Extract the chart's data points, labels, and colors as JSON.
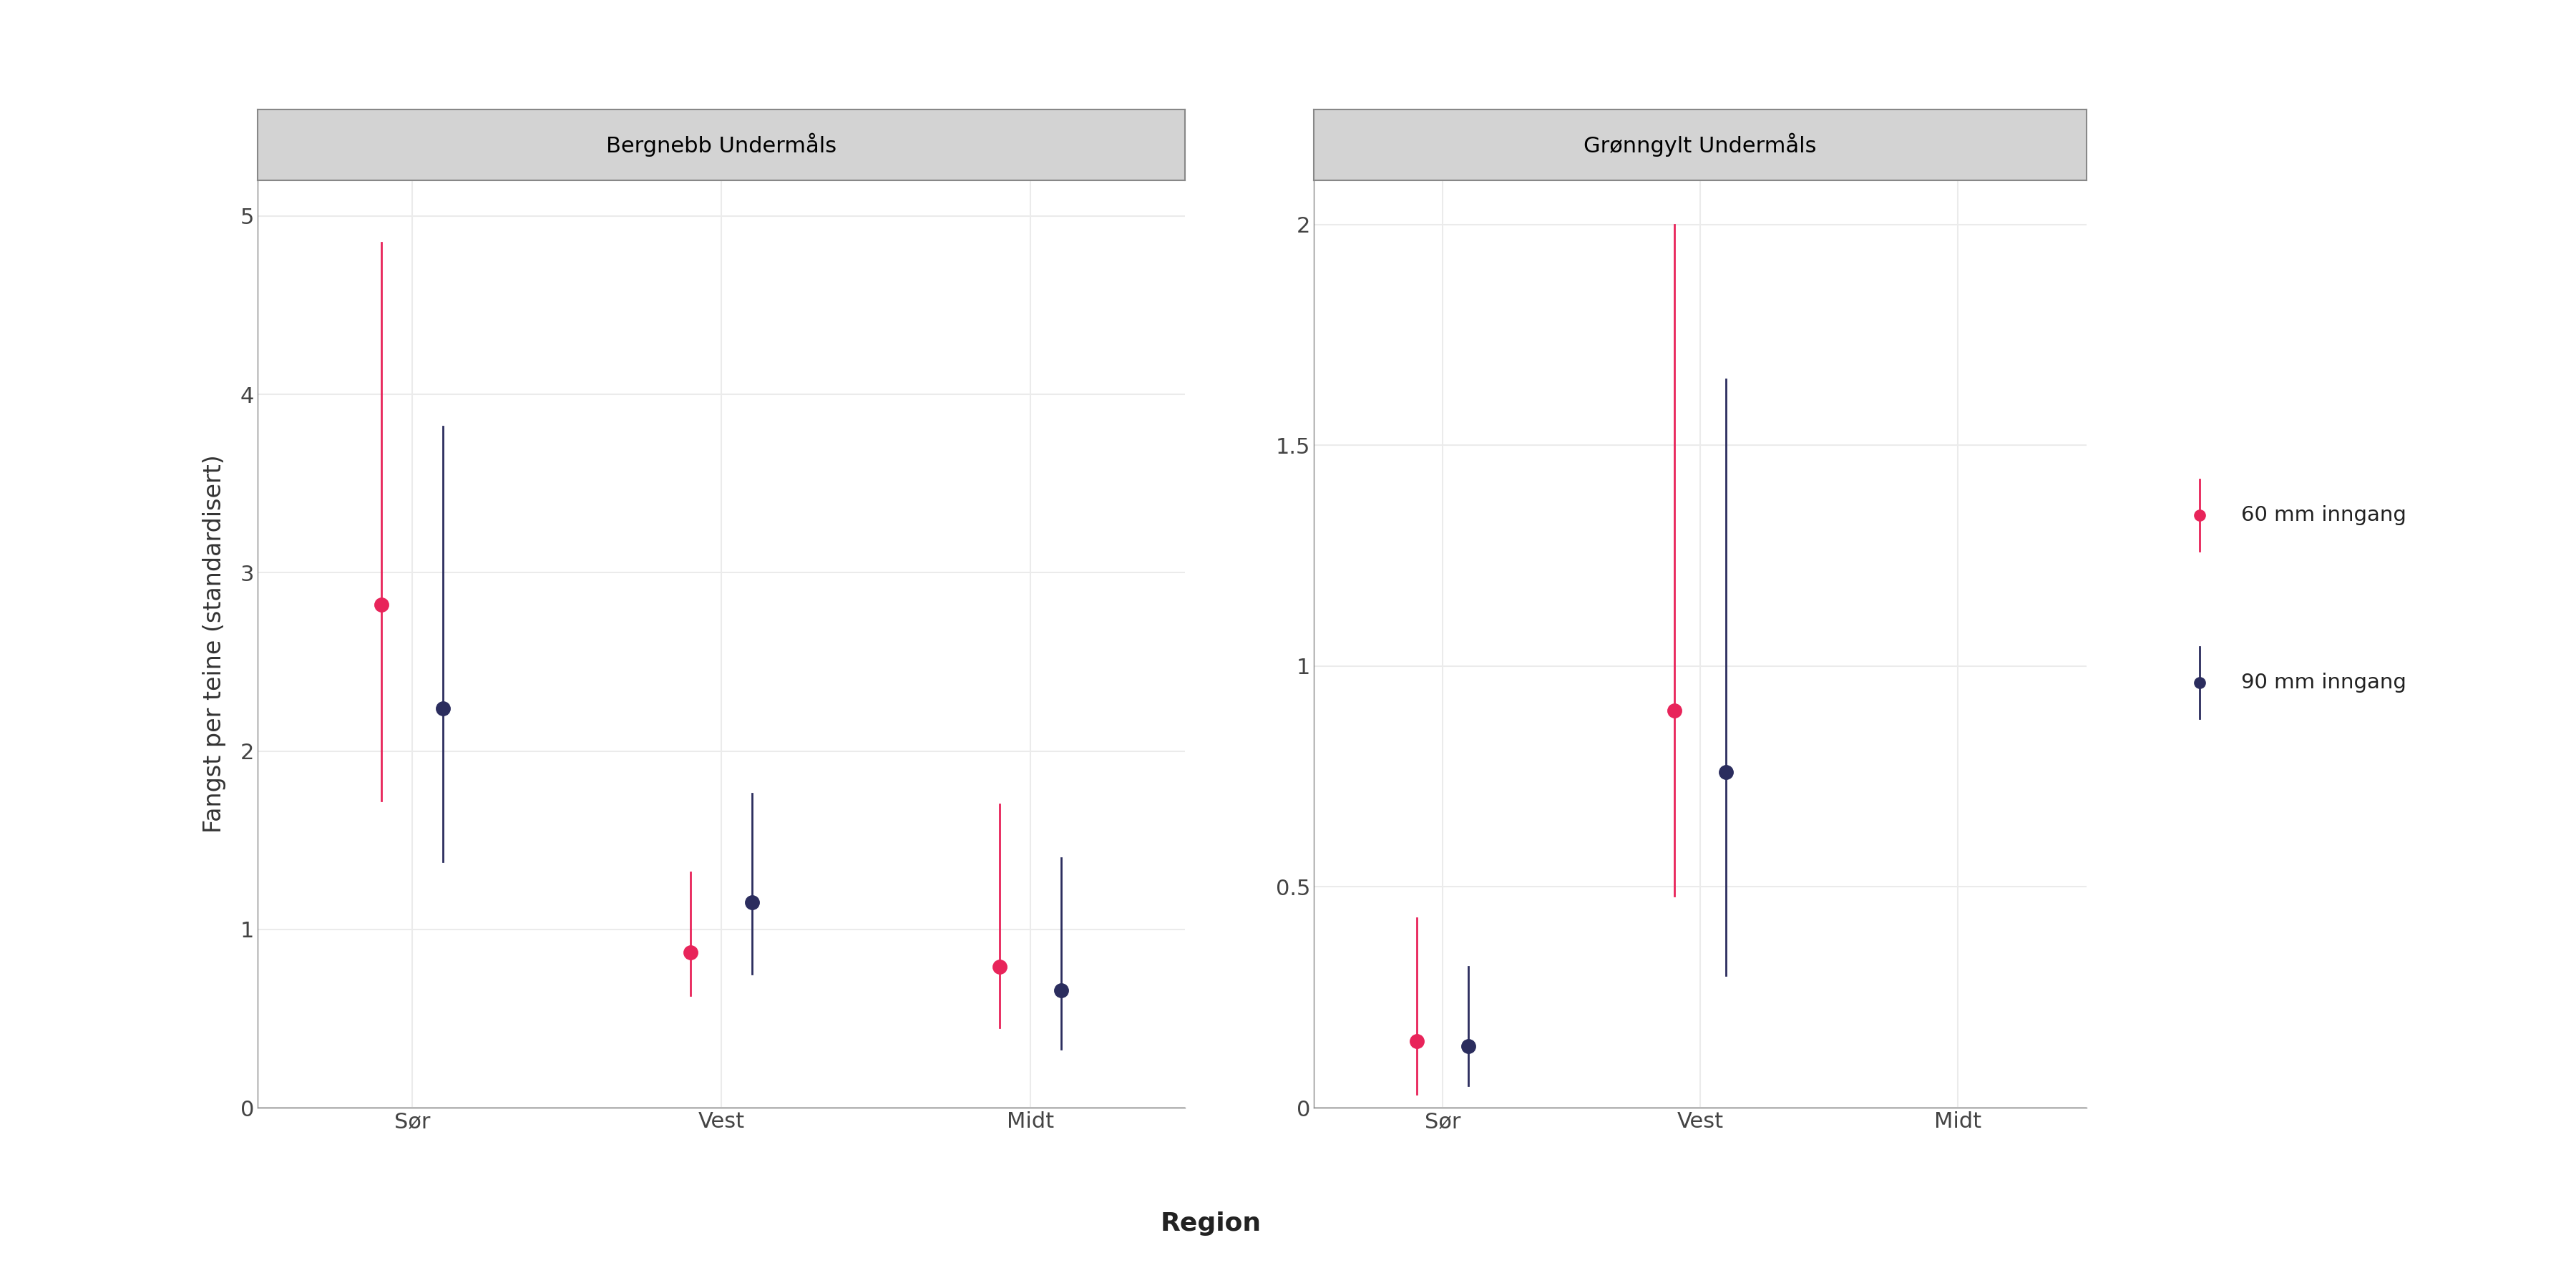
{
  "panel1_title": "Bergnebb Undermåls",
  "panel2_title": "Grønngylt Undermåls",
  "xlabel": "Region",
  "ylabel": "Fangst per teine (standardisert)",
  "categories": [
    "Sør",
    "Vest",
    "Midt"
  ],
  "color_60mm": "#E8245A",
  "color_90mm": "#2B2D5E",
  "legend_label_60": "60 mm inngang",
  "legend_label_90": "90 mm inngang",
  "bergnebb": {
    "sor_60": {
      "mean": 2.82,
      "lo": 1.72,
      "hi": 4.85
    },
    "sor_90": {
      "mean": 2.24,
      "lo": 1.38,
      "hi": 3.82
    },
    "vest_60": {
      "mean": 0.87,
      "lo": 0.63,
      "hi": 1.32
    },
    "vest_90": {
      "mean": 1.15,
      "lo": 0.75,
      "hi": 1.76
    },
    "midt_60": {
      "mean": 0.79,
      "lo": 0.45,
      "hi": 1.7
    },
    "midt_90": {
      "mean": 0.66,
      "lo": 0.33,
      "hi": 1.4
    }
  },
  "gronngylt": {
    "sor_60": {
      "mean": 0.15,
      "lo": 0.03,
      "hi": 0.43
    },
    "sor_90": {
      "mean": 0.14,
      "lo": 0.05,
      "hi": 0.32
    },
    "vest_60": {
      "mean": 0.9,
      "lo": 0.48,
      "hi": 2.0
    },
    "vest_90": {
      "mean": 0.76,
      "lo": 0.3,
      "hi": 1.65
    },
    "midt_60": {
      "mean": null,
      "lo": null,
      "hi": null
    },
    "midt_90": {
      "mean": null,
      "lo": null,
      "hi": null
    }
  },
  "panel1_ylim": [
    0,
    5.2
  ],
  "panel1_yticks": [
    0,
    1,
    2,
    3,
    4,
    5
  ],
  "panel2_ylim": [
    0,
    2.1
  ],
  "panel2_yticks": [
    0.0,
    0.5,
    1.0,
    1.5,
    2.0
  ],
  "background_color": "#FFFFFF",
  "panel_bg": "#FFFFFF",
  "strip_bg": "#D3D3D3",
  "strip_edge": "#888888",
  "grid_color": "#EBEBEB",
  "spine_color": "#888888"
}
